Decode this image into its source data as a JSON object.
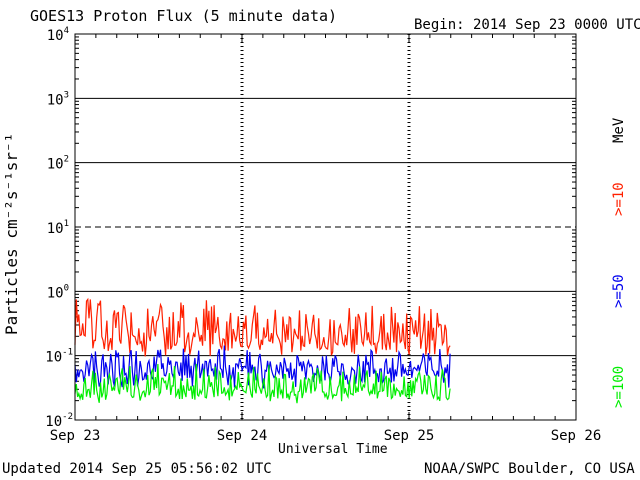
{
  "header": {
    "title": "GOES13 Proton Flux (5 minute data)",
    "begin": "Begin: 2014 Sep 23 0000 UTC"
  },
  "footer": {
    "updated": "Updated 2014 Sep 25 05:56:02 UTC",
    "credit": "NOAA/SWPC Boulder, CO USA"
  },
  "chart_data": {
    "type": "line",
    "title": "GOES13 Proton Flux (5 minute data)",
    "xlabel": "Universal Time",
    "ylabel": "Particles cm⁻²s⁻¹sr⁻¹",
    "yscale": "log",
    "ylim": [
      0.01,
      10000
    ],
    "xlim": [
      "2014-09-23T00:00",
      "2014-09-26T00:00"
    ],
    "x_ticks": [
      "Sep 23",
      "Sep 24",
      "Sep 25",
      "Sep 26"
    ],
    "y_ticks": [
      {
        "base": "10",
        "exp": "-2"
      },
      {
        "base": "10",
        "exp": "-1"
      },
      {
        "base": "10",
        "exp": "0"
      },
      {
        "base": "10",
        "exp": "1"
      },
      {
        "base": "10",
        "exp": "2"
      },
      {
        "base": "10",
        "exp": "3"
      },
      {
        "base": "10",
        "exp": "4"
      }
    ],
    "data_end": "2014-09-25T05:55",
    "reference_lines": [
      {
        "value": 10,
        "style": "dashed"
      },
      {
        "value": 0.1,
        "style": "solid"
      }
    ],
    "unit_label": "MeV",
    "series": [
      {
        "name": ">=10",
        "color": "#ff2000",
        "typical": 0.2,
        "range": [
          0.09,
          0.75
        ]
      },
      {
        "name": ">=50",
        "color": "#0000ee",
        "typical": 0.06,
        "range": [
          0.03,
          0.15
        ]
      },
      {
        "name": ">=100",
        "color": "#00ee00",
        "typical": 0.03,
        "range": [
          0.018,
          0.08
        ]
      }
    ],
    "legend_position": "right, vertical"
  }
}
